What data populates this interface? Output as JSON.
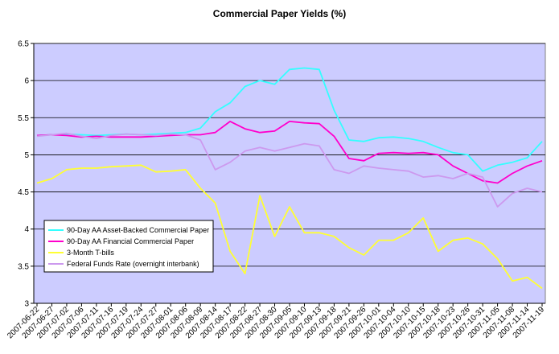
{
  "chart_data": {
    "type": "line",
    "title": "Commercial Paper Yields (%)",
    "xlabel": "",
    "ylabel": "",
    "ylim": [
      3,
      6.5
    ],
    "yticks": [
      "3",
      "3.5",
      "4",
      "4.5",
      "5",
      "5.5",
      "6",
      "6.5"
    ],
    "grid": true,
    "legend_position": "bottom-left",
    "plot_background": "#ccccff",
    "x": [
      "2007-06-22",
      "2007-06-27",
      "2007-07-02",
      "2007-07-06",
      "2007-07-11",
      "2007-07-16",
      "2007-07-19",
      "2007-07-24",
      "2007-07-27",
      "2007-08-01",
      "2007-08-06",
      "2007-08-09",
      "2007-08-14",
      "2007-08-17",
      "2007-08-22",
      "2007-08-27",
      "2007-08-30",
      "2007-09-05",
      "2007-09-10",
      "2007-09-13",
      "2007-09-18",
      "2007-09-21",
      "2007-09-26",
      "2007-10-01",
      "2007-10-04",
      "2007-10-10",
      "2007-10-15",
      "2007-10-18",
      "2007-10-23",
      "2007-10-26",
      "2007-10-31",
      "2007-11-05",
      "2007-11-08",
      "2007-11-14",
      "2007-11-19"
    ],
    "series": [
      {
        "name": "90-Day AA Asset-Backed Commercial Paper",
        "color": "#33ffff",
        "values": [
          5.26,
          5.27,
          5.28,
          5.27,
          5.26,
          5.27,
          5.28,
          5.27,
          5.28,
          5.29,
          5.3,
          5.36,
          5.58,
          5.7,
          5.92,
          6.0,
          5.95,
          6.15,
          6.17,
          6.15,
          5.6,
          5.2,
          5.18,
          5.23,
          5.24,
          5.22,
          5.18,
          5.1,
          5.03,
          5.0,
          4.78,
          4.86,
          4.9,
          4.96,
          5.18
        ]
      },
      {
        "name": "90-Day AA Financial Commercial Paper",
        "color": "#ff00cc",
        "values": [
          5.26,
          5.27,
          5.26,
          5.24,
          5.25,
          5.24,
          5.24,
          5.24,
          5.25,
          5.26,
          5.27,
          5.27,
          5.3,
          5.45,
          5.35,
          5.3,
          5.32,
          5.45,
          5.43,
          5.42,
          5.25,
          4.95,
          4.92,
          5.02,
          5.03,
          5.02,
          5.03,
          5.0,
          4.85,
          4.75,
          4.65,
          4.62,
          4.75,
          4.85,
          4.92
        ]
      },
      {
        "name": "3-Month T-bills",
        "color": "#ffff33",
        "values": [
          4.62,
          4.68,
          4.8,
          4.82,
          4.82,
          4.84,
          4.85,
          4.86,
          4.77,
          4.78,
          4.8,
          4.55,
          4.35,
          3.7,
          3.4,
          4.45,
          3.9,
          4.3,
          3.95,
          3.95,
          3.9,
          3.75,
          3.65,
          3.85,
          3.85,
          3.95,
          4.15,
          3.7,
          3.85,
          3.88,
          3.8,
          3.6,
          3.3,
          3.35,
          3.2
        ]
      },
      {
        "name": "Federal Funds Rate (overnight interbank)",
        "color": "#cc99ee",
        "values": [
          5.25,
          5.27,
          5.29,
          5.25,
          5.22,
          5.26,
          5.28,
          5.27,
          5.26,
          5.28,
          5.27,
          5.2,
          4.8,
          4.9,
          5.05,
          5.1,
          5.05,
          5.1,
          5.15,
          5.12,
          4.8,
          4.75,
          4.85,
          4.82,
          4.8,
          4.78,
          4.7,
          4.72,
          4.68,
          4.75,
          4.7,
          4.3,
          4.48,
          4.55,
          4.5
        ]
      }
    ]
  }
}
